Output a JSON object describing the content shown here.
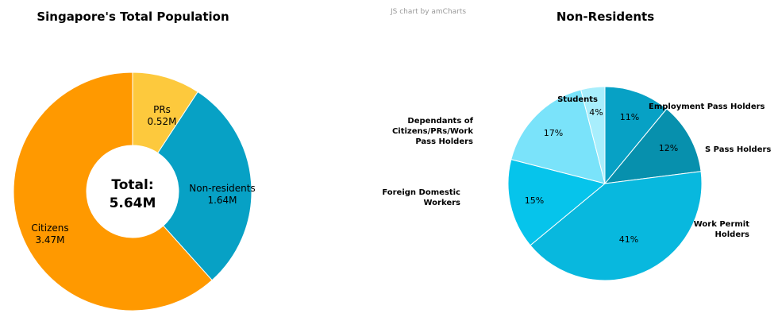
{
  "credit": "JS chart by amCharts",
  "chart_data": [
    {
      "type": "pie",
      "title": "Singapore's Total Population",
      "center": {
        "label": "Total:",
        "value": "5.64M"
      },
      "series": [
        {
          "name": "PRs",
          "value": 0.52,
          "display": "0.52M",
          "color": "#FDC93D"
        },
        {
          "name": "Non-residents",
          "value": 1.64,
          "display": "1.64M",
          "color": "#07A1C5"
        },
        {
          "name": "Citizens",
          "value": 3.47,
          "display": "3.47M",
          "color": "#FF9900"
        }
      ]
    },
    {
      "type": "pie",
      "title": "Non-Residents",
      "series": [
        {
          "name": "Employment Pass Holders",
          "value": 11,
          "display": "11%",
          "color": "#07A1C5"
        },
        {
          "name": "S Pass Holders",
          "value": 12,
          "display": "12%",
          "color": "#0790AD"
        },
        {
          "name": "Work Permit Holders",
          "value": 41,
          "display": "41%",
          "color": "#08B8DE"
        },
        {
          "name": "Foreign Domestic Workers",
          "value": 15,
          "display": "15%",
          "color": "#06C4EB"
        },
        {
          "name": "Dependants of Citizens/PRs/Work Pass Holders",
          "value": 17,
          "display": "17%",
          "color": "#7AE3FA"
        },
        {
          "name": "Students",
          "value": 4,
          "display": "4%",
          "color": "#A8EEFC"
        }
      ]
    }
  ]
}
